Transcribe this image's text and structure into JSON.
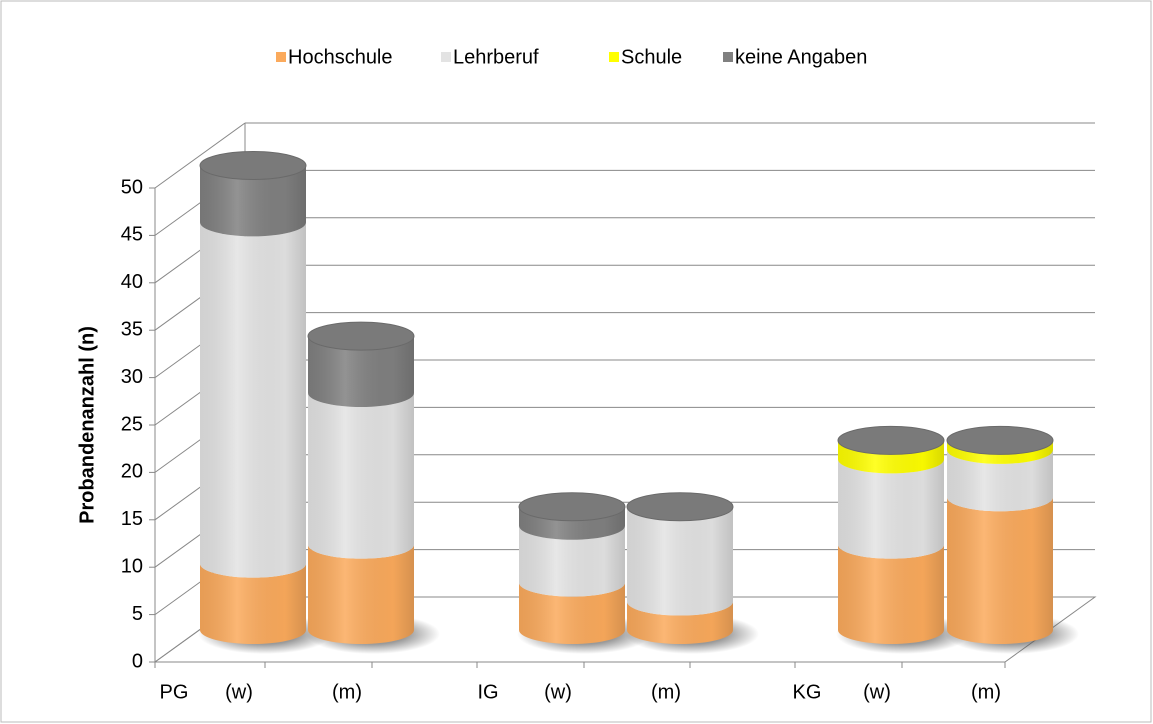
{
  "chart_data": {
    "type": "bar3d-stacked-cylinder",
    "yaxis_label": "Probandenanzahl (n)",
    "groups": [
      "PG",
      "IG",
      "KG"
    ],
    "categories": [
      "(w)",
      "(m)",
      "(w)",
      "(m)",
      "(w)",
      "(m)"
    ],
    "series": [
      {
        "name": "Hochschule",
        "color": "#fbaa5c",
        "values": [
          7,
          9,
          5,
          3,
          9,
          14
        ]
      },
      {
        "name": "Lehrberuf",
        "color": "#e3e3e3",
        "values": [
          36,
          16,
          6,
          10,
          9,
          5
        ]
      },
      {
        "name": "Schule",
        "color": "#ffff00",
        "values": [
          0,
          0,
          0,
          0,
          2,
          1
        ]
      },
      {
        "name": "keine Angaben",
        "color": "#808080",
        "values": [
          6,
          6,
          2,
          0,
          0,
          0
        ]
      }
    ],
    "ylim": [
      0,
      50
    ],
    "yticks": [
      0,
      5,
      10,
      15,
      20,
      25,
      30,
      35,
      40,
      45,
      50
    ],
    "grid": true,
    "legend": "top"
  }
}
